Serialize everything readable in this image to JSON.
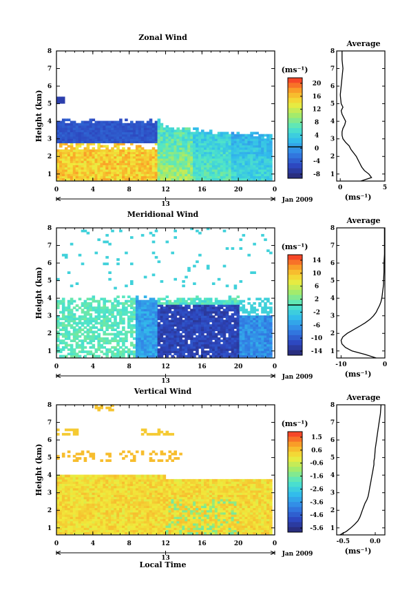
{
  "chart_data": [
    {
      "id": "zonal",
      "type": "heatmap",
      "title": "Zonal Wind",
      "ylabel": "Height (km)",
      "unit_label": "(ms⁻¹)",
      "x_ticks": [
        "0",
        "4",
        "8",
        "12",
        "16",
        "20",
        "0"
      ],
      "date_label": "13",
      "date_right": "Jan 2009",
      "ylim": [
        0.6,
        8
      ],
      "y_ticks": [
        "1",
        "2",
        "3",
        "4",
        "5",
        "6",
        "7",
        "8"
      ],
      "colorbar_ticks": [
        "20",
        "16",
        "12",
        "8",
        "4",
        "0",
        "-4",
        "-8"
      ],
      "colorbar_range": [
        -10,
        22
      ],
      "colorbar_zero_line": 0,
      "profile": {
        "title": "Average",
        "xlabel": "(ms⁻¹)",
        "x_ticks": [
          "0",
          "5"
        ],
        "xlim": [
          -0.4,
          5
        ],
        "heights": [
          0.6,
          0.8,
          1.0,
          1.2,
          1.4,
          1.6,
          1.8,
          2.0,
          2.2,
          2.4,
          2.6,
          2.8,
          3.0,
          3.2,
          3.4,
          3.6,
          3.8,
          4.0,
          4.2,
          4.4,
          4.6,
          4.8,
          5.0,
          5.5,
          6.0,
          6.5,
          7.0,
          7.5,
          8.0
        ],
        "values": [
          2.3,
          3.5,
          3.2,
          2.7,
          2.4,
          2.2,
          2.0,
          1.8,
          1.5,
          1.2,
          1.0,
          0.6,
          0.3,
          0.2,
          0.2,
          0.3,
          0.5,
          0.6,
          0.4,
          0.2,
          0.1,
          0.3,
          0.1,
          0.0,
          0.1,
          0.2,
          0.3,
          0.2,
          0.2
        ]
      }
    },
    {
      "id": "meridional",
      "type": "heatmap",
      "title": "Meridional Wind",
      "ylabel": "Height (km)",
      "unit_label": "(ms⁻¹)",
      "x_ticks": [
        "0",
        "4",
        "8",
        "12",
        "16",
        "20",
        "0"
      ],
      "date_label": "13",
      "date_right": "Jan 2009",
      "ylim": [
        0.6,
        8
      ],
      "y_ticks": [
        "1",
        "2",
        "3",
        "4",
        "5",
        "6",
        "7",
        "8"
      ],
      "colorbar_ticks": [
        "14",
        "10",
        "6",
        "2",
        "-2",
        "-6",
        "-10",
        "-14"
      ],
      "colorbar_range": [
        -16,
        16
      ],
      "colorbar_zero_line": 0,
      "profile": {
        "title": "Average",
        "xlabel": "(ms⁻¹)",
        "x_ticks": [
          "-10",
          "0"
        ],
        "xlim": [
          -11,
          0
        ],
        "heights": [
          0.6,
          0.8,
          1.0,
          1.2,
          1.4,
          1.6,
          1.8,
          2.0,
          2.2,
          2.4,
          2.6,
          2.8,
          3.0,
          3.2,
          3.4,
          3.6,
          3.8,
          4.0,
          4.2,
          4.4,
          4.6,
          4.8,
          5.0,
          5.5,
          6.0,
          6.5,
          7.0,
          7.5,
          8.0
        ],
        "values": [
          -2.0,
          -4.5,
          -7.5,
          -9.0,
          -9.8,
          -10.0,
          -9.6,
          -8.6,
          -7.2,
          -5.8,
          -4.5,
          -3.4,
          -2.6,
          -2.0,
          -1.6,
          -1.2,
          -0.9,
          -0.7,
          -0.6,
          -0.5,
          -0.4,
          -0.3,
          -0.3,
          -0.2,
          -0.2,
          -0.1,
          -0.1,
          -0.1,
          -0.1
        ]
      }
    },
    {
      "id": "vertical",
      "type": "heatmap",
      "title": "Vertical Wind",
      "ylabel": "Height (km)",
      "xlabel": "Local Time",
      "unit_label": "(ms⁻¹)",
      "x_ticks": [
        "0",
        "4",
        "8",
        "12",
        "16",
        "20",
        "0"
      ],
      "date_label": "13",
      "date_right": "Jan 2009",
      "ylim": [
        0.6,
        8
      ],
      "y_ticks": [
        "1",
        "2",
        "3",
        "4",
        "5",
        "6",
        "7",
        "8"
      ],
      "colorbar_ticks": [
        "1.5",
        "0.6",
        "-0.6",
        "-1.6",
        "-2.6",
        "-3.6",
        "-4.6",
        "-5.6"
      ],
      "colorbar_range": [
        -6,
        2
      ],
      "colorbar_zero_line": null,
      "profile": {
        "title": "Average",
        "xlabel": "(ms⁻¹)",
        "x_ticks": [
          "-0.5",
          "0.0"
        ],
        "xlim": [
          -0.6,
          0.15
        ],
        "heights": [
          0.6,
          0.8,
          1.0,
          1.2,
          1.4,
          1.6,
          1.8,
          2.0,
          2.2,
          2.4,
          2.6,
          2.8,
          3.0,
          3.2,
          3.4,
          3.6,
          3.8,
          4.0,
          4.2,
          4.4,
          4.6,
          4.8,
          5.0,
          5.5,
          6.0,
          6.5,
          7.0,
          7.5,
          8.0
        ],
        "values": [
          -0.55,
          -0.45,
          -0.38,
          -0.32,
          -0.27,
          -0.24,
          -0.22,
          -0.2,
          -0.18,
          -0.16,
          -0.13,
          -0.11,
          -0.1,
          -0.09,
          -0.08,
          -0.07,
          -0.06,
          -0.05,
          -0.04,
          -0.03,
          -0.02,
          -0.02,
          -0.01,
          0.0,
          0.02,
          0.04,
          0.06,
          0.08,
          0.09
        ]
      }
    }
  ]
}
